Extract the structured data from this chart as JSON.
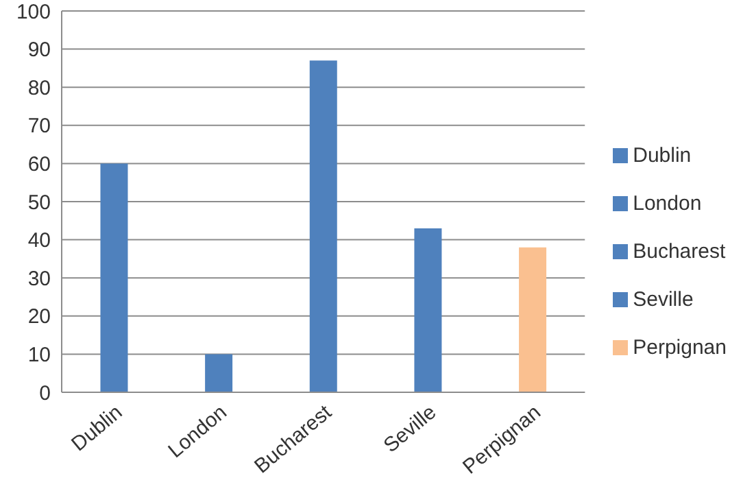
{
  "chart_data": {
    "type": "bar",
    "stacked": true,
    "categories": [
      "Dublin",
      "London",
      "Bucharest",
      "Seville",
      "Perpignan"
    ],
    "series": [
      {
        "name": "Dublin",
        "color": "#4f81bd",
        "values": [
          60,
          null,
          null,
          null,
          null
        ]
      },
      {
        "name": "London",
        "color": "#4f81bd",
        "values": [
          null,
          10,
          null,
          null,
          null
        ]
      },
      {
        "name": "Bucharest",
        "color": "#4f81bd",
        "values": [
          null,
          null,
          87,
          null,
          null
        ]
      },
      {
        "name": "Seville",
        "color": "#4f81bd",
        "values": [
          null,
          null,
          null,
          43,
          null
        ]
      },
      {
        "name": "Perpignan",
        "color": "#fac090",
        "values": [
          null,
          null,
          null,
          null,
          38
        ]
      }
    ],
    "ylim": [
      0,
      100
    ],
    "yticks": [
      0,
      10,
      20,
      30,
      40,
      50,
      60,
      70,
      80,
      90,
      100
    ],
    "grid": "y",
    "legend": "right"
  }
}
